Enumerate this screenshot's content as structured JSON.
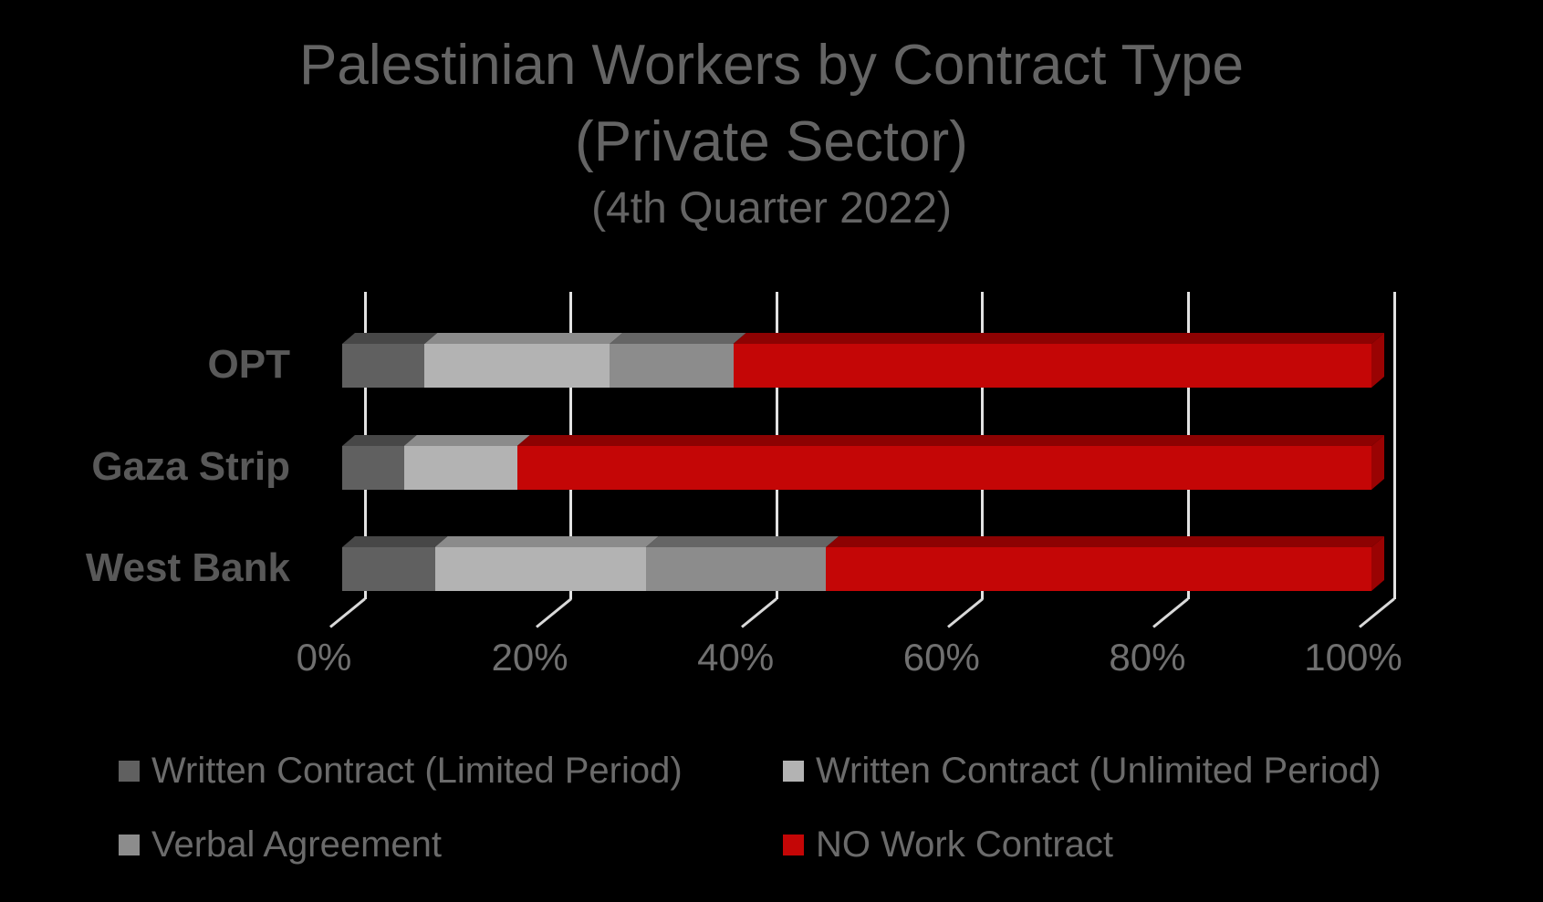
{
  "title": {
    "line1": "Palestinian Workers by Contract Type",
    "line2": "(Private Sector)",
    "line3": "(4th Quarter 2022)"
  },
  "colors": {
    "background": "#000000",
    "title_text": "#646464",
    "category_label_text": "#595959",
    "axis_label_text": "#707070",
    "legend_text": "#6b6b6b",
    "gridline": "#e2e2e2"
  },
  "chart_data": {
    "type": "bar",
    "orientation": "horizontal",
    "stacked": true,
    "style": "3d",
    "title": "Palestinian Workers by Contract Type (Private Sector) (4th Quarter 2022)",
    "categories": [
      "OPT",
      "Gaza Strip",
      "West Bank"
    ],
    "series": [
      {
        "name": "Written Contract (Limited Period)",
        "color": "#606060",
        "top_color": "#474747",
        "values": [
          8,
          6,
          9
        ]
      },
      {
        "name": "Written Contract (Unlimited Period)",
        "color": "#b3b3b3",
        "top_color": "#8b8b8b",
        "values": [
          18,
          11,
          20.5
        ]
      },
      {
        "name": "Verbal Agreement",
        "color": "#8c8c8c",
        "top_color": "#656565",
        "values": [
          12,
          0,
          17.5
        ]
      },
      {
        "name": "NO Work Contract",
        "color": "#c40606",
        "top_color": "#8d0202",
        "side_color": "#9a0303",
        "values": [
          62,
          83,
          53
        ]
      }
    ],
    "x_axis": {
      "ticks": [
        "0%",
        "20%",
        "40%",
        "60%",
        "80%",
        "100%"
      ],
      "min": 0,
      "max": 100,
      "step": 20
    },
    "grid": true,
    "legend_position": "bottom"
  }
}
